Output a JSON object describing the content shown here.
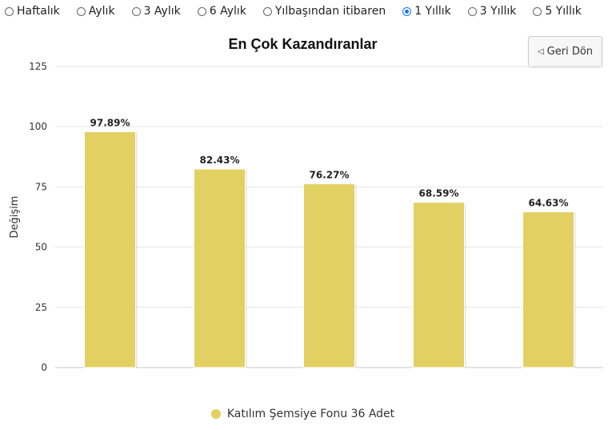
{
  "period_options": [
    {
      "label": "Haftalık",
      "checked": false
    },
    {
      "label": "Aylık",
      "checked": false
    },
    {
      "label": "3 Aylık",
      "checked": false
    },
    {
      "label": "6 Aylık",
      "checked": false
    },
    {
      "label": "Yılbaşından itibaren",
      "checked": false
    },
    {
      "label": "1 Yıllık",
      "checked": true
    },
    {
      "label": "3 Yıllık",
      "checked": false
    },
    {
      "label": "5 Yıllık",
      "checked": false
    }
  ],
  "back_button": {
    "label": "Geri Dön",
    "icon": "triangle-left-icon"
  },
  "chart_data": {
    "type": "bar",
    "title": "En Çok Kazandıranlar",
    "xlabel": "",
    "ylabel": "Değişim",
    "categories": [
      "",
      "",
      "",
      "",
      ""
    ],
    "series": [
      {
        "name": "Katılım Şemsiye Fonu 36 Adet",
        "values": [
          97.89,
          82.43,
          76.27,
          68.59,
          64.63
        ],
        "color": "#e3d062"
      }
    ],
    "data_labels": [
      "97.89%",
      "82.43%",
      "76.27%",
      "68.59%",
      "64.63%"
    ],
    "ylim": [
      0,
      125
    ],
    "yticks": [
      "0",
      "25",
      "50",
      "75",
      "100",
      "125"
    ],
    "grid": true,
    "legend_position": "bottom"
  }
}
